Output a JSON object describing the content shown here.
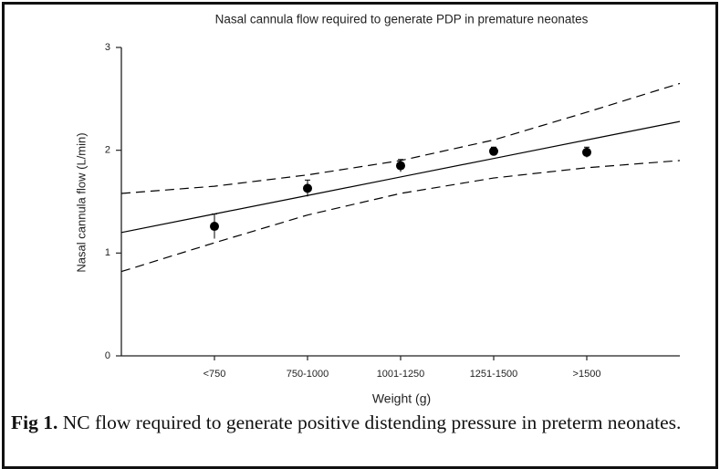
{
  "chart_data": {
    "type": "scatter",
    "title": "Nasal cannula flow required to generate PDP in premature neonates",
    "x_label": "Weight (g)",
    "y_label": "Nasal cannula flow (L/min)",
    "xlim": [
      0,
      6
    ],
    "xticks": [
      {
        "value": 1,
        "label": "<750"
      },
      {
        "value": 2,
        "label": "750-1000"
      },
      {
        "value": 3,
        "label": "1001-1250"
      },
      {
        "value": 4,
        "label": "1251-1500"
      },
      {
        "value": 5,
        "label": ">1500"
      }
    ],
    "ylim": [
      0,
      3
    ],
    "yticks": [
      0,
      1,
      2,
      3
    ],
    "color": "#000000",
    "points": {
      "x": [
        1,
        2,
        3,
        4,
        5
      ],
      "values": [
        1.26,
        1.63,
        1.85,
        1.99,
        1.98
      ],
      "errors": [
        0.12,
        0.08,
        0.06,
        0.04,
        0.05
      ]
    },
    "fit": {
      "x": [
        0,
        1,
        2,
        3,
        4,
        5,
        6
      ],
      "values": [
        1.2,
        1.38,
        1.56,
        1.74,
        1.92,
        2.1,
        2.28
      ]
    },
    "upper_band": {
      "x": [
        0,
        1,
        2,
        3,
        4,
        5,
        6
      ],
      "values": [
        1.58,
        1.65,
        1.76,
        1.9,
        2.1,
        2.37,
        2.65
      ]
    },
    "lower_band": {
      "x": [
        0,
        1,
        2,
        3,
        4,
        5,
        6
      ],
      "values": [
        0.82,
        1.1,
        1.37,
        1.58,
        1.73,
        1.83,
        1.9
      ]
    },
    "caption_label": "Fig 1.",
    "caption": "NC flow required to generate positive distending pressure in preterm neonates."
  }
}
